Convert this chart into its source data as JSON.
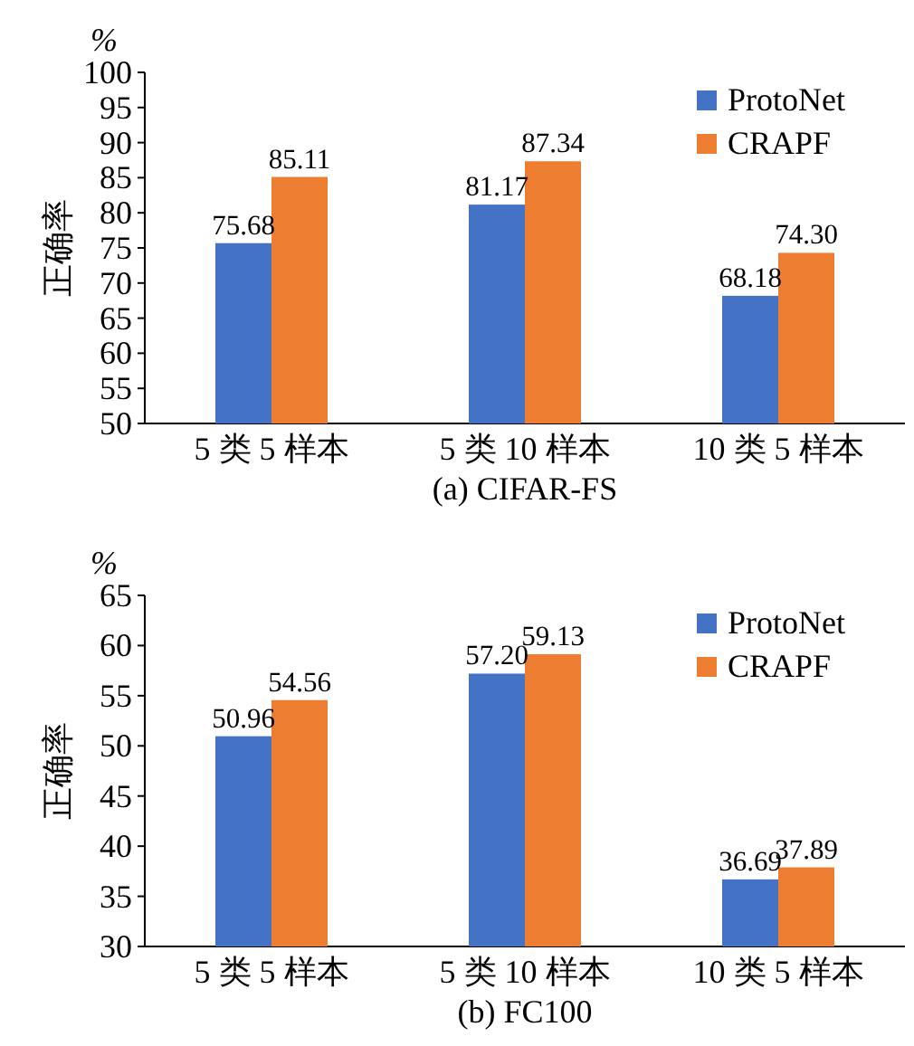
{
  "chart_data": [
    {
      "type": "bar",
      "title": "(a) CIFAR-FS",
      "ylabel": "正确率",
      "annotations": [
        "%"
      ],
      "categories": [
        "5 类 5 样本",
        "5 类 10 样本",
        "10 类 5 样本"
      ],
      "series": [
        {
          "name": "ProtoNet",
          "color": "#4472c4",
          "values": [
            75.68,
            81.17,
            68.18
          ],
          "value_labels": [
            "75.68",
            "81.17",
            "68.18"
          ]
        },
        {
          "name": "CRAPF",
          "color": "#ed7d31",
          "values": [
            85.11,
            87.34,
            74.3
          ],
          "value_labels": [
            "85.11",
            "87.34",
            "74.30"
          ]
        }
      ],
      "ylim": [
        50,
        100
      ],
      "yticks": [
        50,
        55,
        60,
        65,
        70,
        75,
        80,
        85,
        90,
        95,
        100
      ],
      "legend": "top right",
      "grid": false
    },
    {
      "type": "bar",
      "title": "(b) FC100",
      "ylabel": "正确率",
      "annotations": [
        "%"
      ],
      "categories": [
        "5 类 5 样本",
        "5 类 10 样本",
        "10 类 5 样本"
      ],
      "series": [
        {
          "name": "ProtoNet",
          "color": "#4472c4",
          "values": [
            50.96,
            57.2,
            36.69
          ],
          "value_labels": [
            "50.96",
            "57.20",
            "36.69"
          ]
        },
        {
          "name": "CRAPF",
          "color": "#ed7d31",
          "values": [
            54.56,
            59.13,
            37.89
          ],
          "value_labels": [
            "54.56",
            "59.13",
            "37.89"
          ]
        }
      ],
      "ylim": [
        30,
        65
      ],
      "yticks": [
        30,
        35,
        40,
        45,
        50,
        55,
        60,
        65
      ],
      "legend": "top right",
      "grid": false
    }
  ]
}
